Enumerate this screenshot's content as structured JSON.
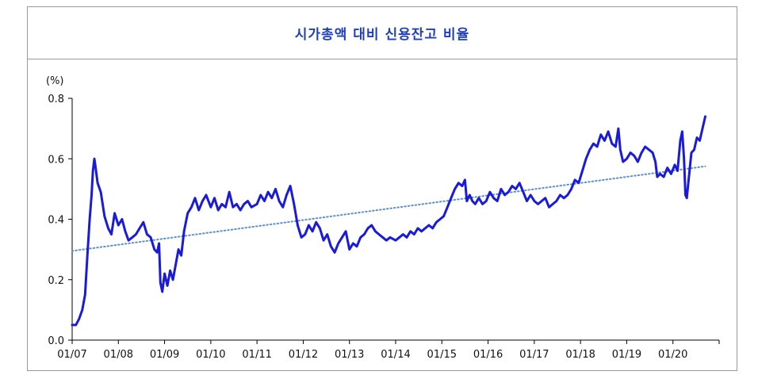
{
  "chart_data": {
    "type": "line",
    "title": "시가총액 대비 신용잔고 비율",
    "ylabel": "(%)",
    "xlabel": "",
    "ylim": [
      0.0,
      0.8
    ],
    "yticks": [
      "0.0",
      "0.2",
      "0.4",
      "0.6",
      "0.8"
    ],
    "xlim": [
      2007.0,
      2021.0
    ],
    "xticks": [
      {
        "label": "01/07",
        "value": 2007
      },
      {
        "label": "01/08",
        "value": 2008
      },
      {
        "label": "01/09",
        "value": 2009
      },
      {
        "label": "01/10",
        "value": 2010
      },
      {
        "label": "01/11",
        "value": 2011
      },
      {
        "label": "01/12",
        "value": 2012
      },
      {
        "label": "01/13",
        "value": 2013
      },
      {
        "label": "01/14",
        "value": 2014
      },
      {
        "label": "01/15",
        "value": 2015
      },
      {
        "label": "01/16",
        "value": 2016
      },
      {
        "label": "01/17",
        "value": 2017
      },
      {
        "label": "01/18",
        "value": 2018
      },
      {
        "label": "01/19",
        "value": 2019
      },
      {
        "label": "01/20",
        "value": 2020
      }
    ],
    "grid": false,
    "legend": "none",
    "series": [
      {
        "color": "#1a1adb",
        "points": [
          [
            2007.0,
            0.05
          ],
          [
            2007.08,
            0.05
          ],
          [
            2007.15,
            0.07
          ],
          [
            2007.22,
            0.1
          ],
          [
            2007.28,
            0.15
          ],
          [
            2007.33,
            0.28
          ],
          [
            2007.38,
            0.4
          ],
          [
            2007.42,
            0.48
          ],
          [
            2007.45,
            0.56
          ],
          [
            2007.48,
            0.6
          ],
          [
            2007.5,
            0.58
          ],
          [
            2007.55,
            0.52
          ],
          [
            2007.62,
            0.49
          ],
          [
            2007.7,
            0.41
          ],
          [
            2007.78,
            0.37
          ],
          [
            2007.85,
            0.35
          ],
          [
            2007.92,
            0.42
          ],
          [
            2008.0,
            0.38
          ],
          [
            2008.08,
            0.4
          ],
          [
            2008.15,
            0.36
          ],
          [
            2008.22,
            0.33
          ],
          [
            2008.3,
            0.34
          ],
          [
            2008.38,
            0.35
          ],
          [
            2008.46,
            0.37
          ],
          [
            2008.54,
            0.39
          ],
          [
            2008.62,
            0.35
          ],
          [
            2008.7,
            0.34
          ],
          [
            2008.78,
            0.3
          ],
          [
            2008.84,
            0.29
          ],
          [
            2008.88,
            0.32
          ],
          [
            2008.91,
            0.19
          ],
          [
            2008.95,
            0.16
          ],
          [
            2009.0,
            0.22
          ],
          [
            2009.06,
            0.18
          ],
          [
            2009.12,
            0.23
          ],
          [
            2009.18,
            0.2
          ],
          [
            2009.24,
            0.25
          ],
          [
            2009.3,
            0.3
          ],
          [
            2009.36,
            0.28
          ],
          [
            2009.42,
            0.36
          ],
          [
            2009.5,
            0.42
          ],
          [
            2009.58,
            0.44
          ],
          [
            2009.66,
            0.47
          ],
          [
            2009.74,
            0.43
          ],
          [
            2009.82,
            0.46
          ],
          [
            2009.9,
            0.48
          ],
          [
            2010.0,
            0.44
          ],
          [
            2010.08,
            0.47
          ],
          [
            2010.16,
            0.43
          ],
          [
            2010.24,
            0.45
          ],
          [
            2010.32,
            0.44
          ],
          [
            2010.4,
            0.49
          ],
          [
            2010.48,
            0.44
          ],
          [
            2010.56,
            0.45
          ],
          [
            2010.64,
            0.43
          ],
          [
            2010.72,
            0.45
          ],
          [
            2010.8,
            0.46
          ],
          [
            2010.88,
            0.44
          ],
          [
            2011.0,
            0.45
          ],
          [
            2011.08,
            0.48
          ],
          [
            2011.16,
            0.46
          ],
          [
            2011.24,
            0.49
          ],
          [
            2011.32,
            0.47
          ],
          [
            2011.4,
            0.5
          ],
          [
            2011.48,
            0.46
          ],
          [
            2011.56,
            0.44
          ],
          [
            2011.64,
            0.48
          ],
          [
            2011.72,
            0.51
          ],
          [
            2011.8,
            0.45
          ],
          [
            2011.88,
            0.38
          ],
          [
            2011.96,
            0.34
          ],
          [
            2012.04,
            0.35
          ],
          [
            2012.12,
            0.38
          ],
          [
            2012.2,
            0.36
          ],
          [
            2012.28,
            0.39
          ],
          [
            2012.36,
            0.37
          ],
          [
            2012.44,
            0.33
          ],
          [
            2012.52,
            0.35
          ],
          [
            2012.6,
            0.31
          ],
          [
            2012.68,
            0.29
          ],
          [
            2012.76,
            0.32
          ],
          [
            2012.84,
            0.34
          ],
          [
            2012.92,
            0.36
          ],
          [
            2013.0,
            0.3
          ],
          [
            2013.08,
            0.32
          ],
          [
            2013.16,
            0.31
          ],
          [
            2013.24,
            0.34
          ],
          [
            2013.32,
            0.35
          ],
          [
            2013.4,
            0.37
          ],
          [
            2013.48,
            0.38
          ],
          [
            2013.56,
            0.36
          ],
          [
            2013.64,
            0.35
          ],
          [
            2013.72,
            0.34
          ],
          [
            2013.8,
            0.33
          ],
          [
            2013.88,
            0.34
          ],
          [
            2014.0,
            0.33
          ],
          [
            2014.08,
            0.34
          ],
          [
            2014.16,
            0.35
          ],
          [
            2014.24,
            0.34
          ],
          [
            2014.32,
            0.36
          ],
          [
            2014.4,
            0.35
          ],
          [
            2014.48,
            0.37
          ],
          [
            2014.56,
            0.36
          ],
          [
            2014.64,
            0.37
          ],
          [
            2014.72,
            0.38
          ],
          [
            2014.8,
            0.37
          ],
          [
            2014.88,
            0.39
          ],
          [
            2014.96,
            0.4
          ],
          [
            2015.04,
            0.41
          ],
          [
            2015.12,
            0.44
          ],
          [
            2015.2,
            0.47
          ],
          [
            2015.28,
            0.5
          ],
          [
            2015.36,
            0.52
          ],
          [
            2015.44,
            0.51
          ],
          [
            2015.5,
            0.53
          ],
          [
            2015.54,
            0.46
          ],
          [
            2015.6,
            0.48
          ],
          [
            2015.66,
            0.46
          ],
          [
            2015.72,
            0.45
          ],
          [
            2015.8,
            0.47
          ],
          [
            2015.88,
            0.45
          ],
          [
            2015.96,
            0.46
          ],
          [
            2016.04,
            0.49
          ],
          [
            2016.12,
            0.47
          ],
          [
            2016.2,
            0.46
          ],
          [
            2016.28,
            0.5
          ],
          [
            2016.36,
            0.48
          ],
          [
            2016.44,
            0.49
          ],
          [
            2016.52,
            0.51
          ],
          [
            2016.6,
            0.5
          ],
          [
            2016.68,
            0.52
          ],
          [
            2016.76,
            0.49
          ],
          [
            2016.84,
            0.46
          ],
          [
            2016.92,
            0.48
          ],
          [
            2017.0,
            0.46
          ],
          [
            2017.08,
            0.45
          ],
          [
            2017.16,
            0.46
          ],
          [
            2017.24,
            0.47
          ],
          [
            2017.32,
            0.44
          ],
          [
            2017.4,
            0.45
          ],
          [
            2017.48,
            0.46
          ],
          [
            2017.56,
            0.48
          ],
          [
            2017.64,
            0.47
          ],
          [
            2017.72,
            0.48
          ],
          [
            2017.8,
            0.5
          ],
          [
            2017.88,
            0.53
          ],
          [
            2017.96,
            0.52
          ],
          [
            2018.04,
            0.56
          ],
          [
            2018.12,
            0.6
          ],
          [
            2018.2,
            0.63
          ],
          [
            2018.28,
            0.65
          ],
          [
            2018.36,
            0.64
          ],
          [
            2018.44,
            0.68
          ],
          [
            2018.52,
            0.66
          ],
          [
            2018.6,
            0.69
          ],
          [
            2018.68,
            0.65
          ],
          [
            2018.76,
            0.64
          ],
          [
            2018.82,
            0.7
          ],
          [
            2018.86,
            0.63
          ],
          [
            2018.92,
            0.59
          ],
          [
            2019.0,
            0.6
          ],
          [
            2019.08,
            0.62
          ],
          [
            2019.16,
            0.61
          ],
          [
            2019.24,
            0.59
          ],
          [
            2019.32,
            0.62
          ],
          [
            2019.4,
            0.64
          ],
          [
            2019.48,
            0.63
          ],
          [
            2019.56,
            0.62
          ],
          [
            2019.62,
            0.59
          ],
          [
            2019.66,
            0.54
          ],
          [
            2019.72,
            0.55
          ],
          [
            2019.8,
            0.54
          ],
          [
            2019.88,
            0.57
          ],
          [
            2019.96,
            0.55
          ],
          [
            2020.04,
            0.58
          ],
          [
            2020.1,
            0.56
          ],
          [
            2020.16,
            0.66
          ],
          [
            2020.2,
            0.69
          ],
          [
            2020.24,
            0.6
          ],
          [
            2020.27,
            0.48
          ],
          [
            2020.3,
            0.47
          ],
          [
            2020.34,
            0.53
          ],
          [
            2020.4,
            0.62
          ],
          [
            2020.46,
            0.63
          ],
          [
            2020.52,
            0.67
          ],
          [
            2020.58,
            0.66
          ],
          [
            2020.64,
            0.7
          ],
          [
            2020.7,
            0.74
          ]
        ]
      }
    ],
    "trendline": {
      "color": "#5b8fd6",
      "style": "dotted",
      "points": [
        [
          2007.0,
          0.295
        ],
        [
          2020.7,
          0.575
        ]
      ]
    }
  }
}
